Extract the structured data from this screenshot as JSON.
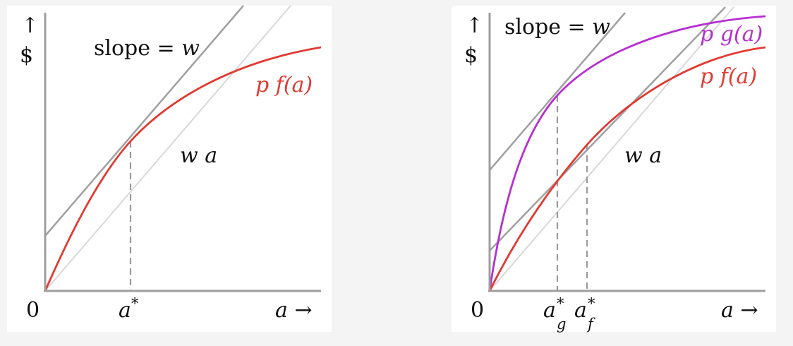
{
  "colors": {
    "background": "#f4f4f4",
    "panel": "#ffffff",
    "curve_f": "#e23a32",
    "curve_g": "#b72fd0",
    "tangent": "#a0a0a0",
    "cost_line": "#d8d8d8",
    "axis": "#9e9e9e"
  },
  "left": {
    "y_arrow": "↑",
    "y_symbol": "$",
    "slope_text": "slope = ",
    "slope_var": "w",
    "curve_label": "p f(a)",
    "cost_label": "w a",
    "origin": "0",
    "astar_base": "a",
    "astar_sup": "*",
    "x_label": "a →"
  },
  "right": {
    "y_arrow": "↑",
    "y_symbol": "$",
    "slope_text": "slope = ",
    "slope_var": "w",
    "curve_g_label": "p g(a)",
    "curve_f_label": "p f(a)",
    "cost_label": "w a",
    "origin": "0",
    "ag_base": "a",
    "ag_sup": "*",
    "ag_sub": "g",
    "af_base": "a",
    "af_sup": "*",
    "af_sub": "f",
    "x_label": "a →"
  }
}
